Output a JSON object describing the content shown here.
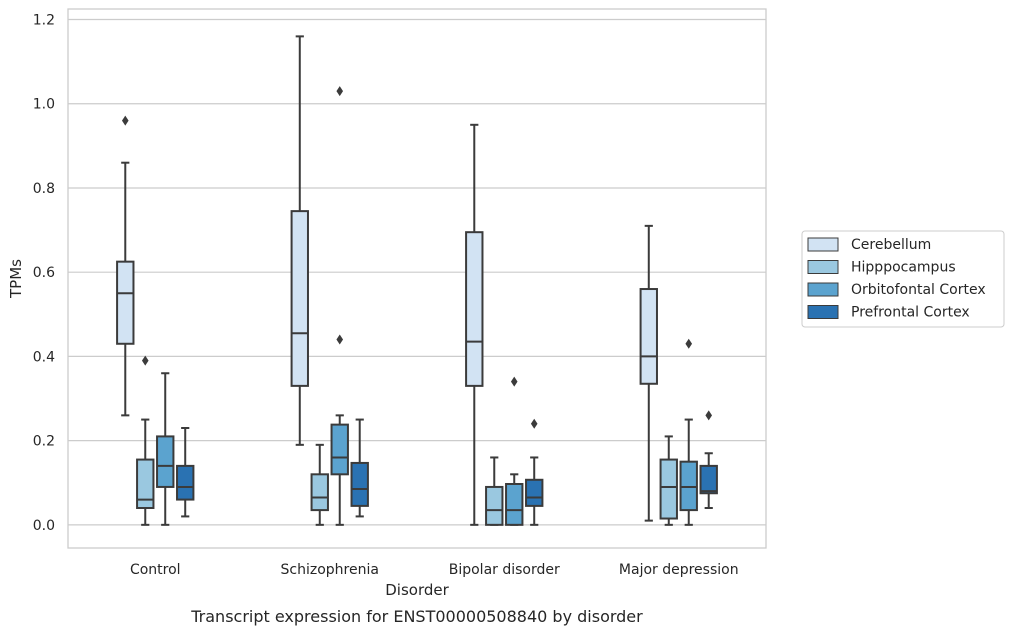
{
  "chart_data": {
    "type": "box",
    "caption": "Transcript expression for ENST00000508840 by disorder",
    "xlabel": "Disorder",
    "ylabel": "TPMs",
    "ylim": [
      -0.055,
      1.225
    ],
    "yticks": [
      0.0,
      0.2,
      0.4,
      0.6,
      0.8,
      1.0,
      1.2
    ],
    "ytick_labels": [
      "0.0",
      "0.2",
      "0.4",
      "0.6",
      "0.8",
      "1.0",
      "1.2"
    ],
    "grid": "horizontal",
    "legend_position": "right",
    "categories": [
      "Control",
      "Schizophrenia",
      "Bipolar disorder",
      "Major depression"
    ],
    "series": [
      {
        "name": "Cerebellum",
        "color": "#d2e3f3",
        "boxes": [
          {
            "whisker_low": 0.26,
            "q1": 0.43,
            "median": 0.55,
            "q3": 0.625,
            "whisker_high": 0.86,
            "outliers": [
              0.96
            ]
          },
          {
            "whisker_low": 0.19,
            "q1": 0.33,
            "median": 0.455,
            "q3": 0.745,
            "whisker_high": 1.16,
            "outliers": []
          },
          {
            "whisker_low": 0.0,
            "q1": 0.33,
            "median": 0.435,
            "q3": 0.695,
            "whisker_high": 0.95,
            "outliers": []
          },
          {
            "whisker_low": 0.01,
            "q1": 0.335,
            "median": 0.4,
            "q3": 0.56,
            "whisker_high": 0.71,
            "outliers": []
          }
        ]
      },
      {
        "name": "Hipppocampus",
        "color": "#9ac8e0",
        "boxes": [
          {
            "whisker_low": 0.0,
            "q1": 0.04,
            "median": 0.06,
            "q3": 0.155,
            "whisker_high": 0.25,
            "outliers": [
              0.39
            ]
          },
          {
            "whisker_low": 0.0,
            "q1": 0.035,
            "median": 0.065,
            "q3": 0.12,
            "whisker_high": 0.19,
            "outliers": []
          },
          {
            "whisker_low": 0.0,
            "q1": 0.0,
            "median": 0.035,
            "q3": 0.09,
            "whisker_high": 0.16,
            "outliers": []
          },
          {
            "whisker_low": 0.0,
            "q1": 0.015,
            "median": 0.09,
            "q3": 0.155,
            "whisker_high": 0.21,
            "outliers": []
          }
        ]
      },
      {
        "name": "Orbitofontal Cortex",
        "color": "#5ba3cf",
        "boxes": [
          {
            "whisker_low": 0.0,
            "q1": 0.09,
            "median": 0.14,
            "q3": 0.21,
            "whisker_high": 0.36,
            "outliers": []
          },
          {
            "whisker_low": 0.0,
            "q1": 0.12,
            "median": 0.16,
            "q3": 0.238,
            "whisker_high": 0.26,
            "outliers": [
              0.44,
              1.03
            ]
          },
          {
            "whisker_low": 0.0,
            "q1": 0.0,
            "median": 0.035,
            "q3": 0.097,
            "whisker_high": 0.12,
            "outliers": [
              0.34
            ]
          },
          {
            "whisker_low": 0.0,
            "q1": 0.035,
            "median": 0.09,
            "q3": 0.15,
            "whisker_high": 0.25,
            "outliers": [
              0.43
            ]
          }
        ]
      },
      {
        "name": "Prefrontal Cortex",
        "color": "#2a72b2",
        "boxes": [
          {
            "whisker_low": 0.02,
            "q1": 0.06,
            "median": 0.09,
            "q3": 0.14,
            "whisker_high": 0.23,
            "outliers": []
          },
          {
            "whisker_low": 0.02,
            "q1": 0.045,
            "median": 0.085,
            "q3": 0.147,
            "whisker_high": 0.25,
            "outliers": []
          },
          {
            "whisker_low": 0.0,
            "q1": 0.045,
            "median": 0.065,
            "q3": 0.107,
            "whisker_high": 0.16,
            "outliers": [
              0.24
            ]
          },
          {
            "whisker_low": 0.04,
            "q1": 0.075,
            "median": 0.08,
            "q3": 0.14,
            "whisker_high": 0.17,
            "outliers": [
              0.26
            ]
          }
        ]
      }
    ]
  }
}
